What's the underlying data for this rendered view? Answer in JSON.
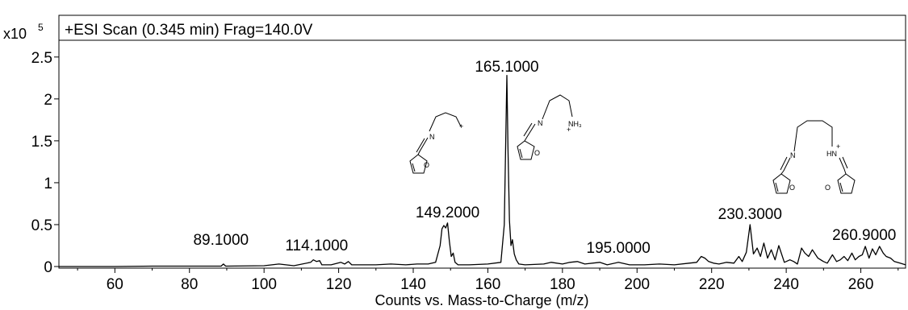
{
  "chart_data": {
    "type": "line",
    "title": "+ESI Scan (0.345 min) Frag=140.0V",
    "xlabel": "Counts vs. Mass-to-Charge (m/z)",
    "ylabel_multiplier": "x10",
    "ylabel_exponent": "5",
    "xlim": [
      45,
      272
    ],
    "ylim": [
      0,
      2.7
    ],
    "x_ticks": [
      60,
      80,
      100,
      120,
      140,
      160,
      180,
      200,
      220,
      240,
      260
    ],
    "x_tick_labels": [
      "60",
      "80",
      "100",
      "120",
      "140",
      "160",
      "180",
      "200",
      "220",
      "240",
      "260"
    ],
    "y_ticks": [
      0,
      0.5,
      1,
      1.5,
      2,
      2.5
    ],
    "y_tick_labels": [
      "0",
      "0.5",
      "1",
      "1.5",
      "2",
      "2.5"
    ],
    "grid": false,
    "peak_labels": [
      {
        "x": 89.1,
        "y": 0.02,
        "text": "89.1000"
      },
      {
        "x": 114.1,
        "y": 0.06,
        "text": "114.1000"
      },
      {
        "x": 149.2,
        "y": 0.52,
        "text": "149.2000"
      },
      {
        "x": 165.1,
        "y": 2.28,
        "text": "165.1000"
      },
      {
        "x": 195.0,
        "y": 0.04,
        "text": "195.0000"
      },
      {
        "x": 230.3,
        "y": 0.5,
        "text": "230.3000"
      },
      {
        "x": 260.9,
        "y": 0.22,
        "text": "260.9000"
      }
    ],
    "series": [
      {
        "x": [
          45,
          60,
          70,
          80,
          88.5,
          89.1,
          89.7,
          100,
          104,
          108,
          112.5,
          113.2,
          114.1,
          114.9,
          115.5,
          118,
          120.6,
          121.6,
          122.6,
          123.5,
          130,
          134,
          138,
          141,
          144,
          146,
          147.2,
          147.7,
          148.2,
          148.7,
          149.2,
          149.7,
          150.2,
          150.7,
          151.2,
          152,
          155,
          160,
          163.5,
          164.4,
          164.8,
          165.1,
          165.4,
          165.8,
          166.2,
          166.6,
          167.1,
          167.6,
          168.3,
          170,
          175,
          177,
          180,
          182,
          184,
          186,
          190,
          192,
          195,
          198,
          202,
          206,
          210,
          214,
          216,
          217.2,
          218.2,
          219.2,
          220.5,
          222,
          224,
          226,
          227.3,
          228.2,
          229.3,
          230.3,
          231.2,
          232.2,
          233.1,
          234,
          235,
          236,
          237,
          238,
          239.5,
          241,
          242,
          243,
          244.1,
          245,
          246,
          247,
          248.5,
          250,
          251,
          252.4,
          253.5,
          254.5,
          255.5,
          256.5,
          257.6,
          258.5,
          259.5,
          260.4,
          261.2,
          262.2,
          263.1,
          264,
          265,
          266,
          266.8,
          268,
          269,
          270.5,
          272
        ],
        "y": [
          0,
          0,
          0.005,
          0.005,
          0.005,
          0.03,
          0.005,
          0.01,
          0.03,
          0.01,
          0.05,
          0.08,
          0.06,
          0.07,
          0.02,
          0.02,
          0.05,
          0.03,
          0.06,
          0.02,
          0.02,
          0.03,
          0.02,
          0.03,
          0.03,
          0.05,
          0.25,
          0.45,
          0.49,
          0.46,
          0.52,
          0.3,
          0.12,
          0.16,
          0.05,
          0.02,
          0.02,
          0.03,
          0.05,
          0.5,
          1.5,
          2.28,
          1.4,
          0.55,
          0.25,
          0.32,
          0.15,
          0.08,
          0.03,
          0.02,
          0.03,
          0.05,
          0.03,
          0.05,
          0.06,
          0.03,
          0.05,
          0.02,
          0.05,
          0.02,
          0.02,
          0.03,
          0.02,
          0.04,
          0.05,
          0.12,
          0.1,
          0.06,
          0.04,
          0.03,
          0.05,
          0.04,
          0.12,
          0.06,
          0.17,
          0.5,
          0.15,
          0.22,
          0.12,
          0.28,
          0.1,
          0.2,
          0.08,
          0.25,
          0.05,
          0.08,
          0.06,
          0.03,
          0.22,
          0.16,
          0.12,
          0.2,
          0.1,
          0.06,
          0.04,
          0.14,
          0.06,
          0.08,
          0.12,
          0.07,
          0.16,
          0.08,
          0.12,
          0.14,
          0.24,
          0.1,
          0.21,
          0.14,
          0.24,
          0.16,
          0.12,
          0.1,
          0.06,
          0.04,
          0.02
        ]
      }
    ]
  },
  "structures": {
    "s1_label": "+",
    "s1_n": "N",
    "s1_o": "O",
    "s2_n": "N",
    "s2_nh3": "NH₃",
    "s2_plus": "+",
    "s2_o": "O",
    "s3_n": "N",
    "s3_hn": "HN",
    "s3_plus": "+",
    "s3_o1": "O",
    "s3_o2": "O"
  }
}
